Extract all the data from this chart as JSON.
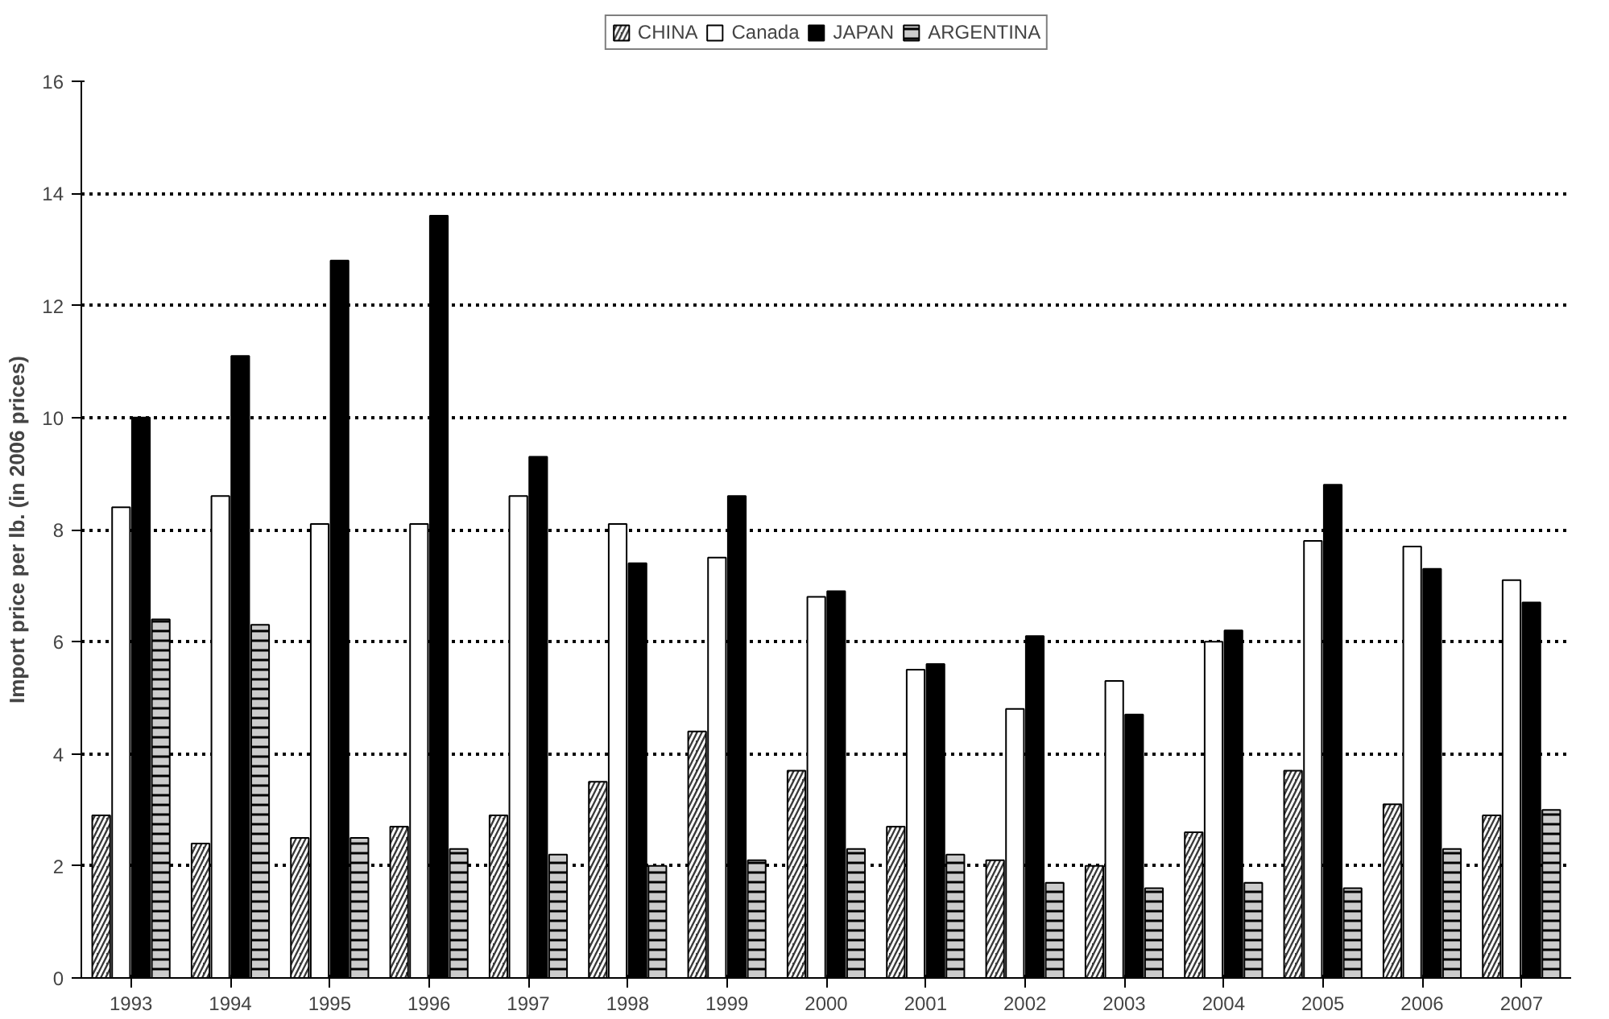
{
  "chart_data": {
    "type": "bar",
    "ylabel": "Import price per lb. (in 2006 prices)",
    "categories": [
      "1993",
      "1994",
      "1995",
      "1996",
      "1997",
      "1998",
      "1999",
      "2000",
      "2001",
      "2002",
      "2003",
      "2004",
      "2005",
      "2006",
      "2007"
    ],
    "series": [
      {
        "name": "CHINA",
        "color": "#3a3a3a",
        "values": [
          2.9,
          2.4,
          2.5,
          2.7,
          2.9,
          3.5,
          4.4,
          3.7,
          2.7,
          2.1,
          2.0,
          2.6,
          3.7,
          3.1,
          2.9
        ]
      },
      {
        "name": "Canada",
        "color": "#ffffff",
        "values": [
          8.4,
          8.6,
          8.1,
          8.1,
          8.6,
          8.1,
          7.5,
          6.8,
          5.5,
          4.8,
          5.3,
          6.0,
          7.8,
          7.7,
          7.1
        ]
      },
      {
        "name": "JAPAN",
        "color": "#000000",
        "values": [
          10.0,
          11.1,
          12.8,
          13.6,
          9.3,
          7.4,
          8.6,
          6.9,
          5.6,
          6.1,
          4.7,
          6.2,
          8.8,
          7.3,
          6.7
        ]
      },
      {
        "name": "ARGENTINA",
        "color": "#cccccc",
        "values": [
          6.4,
          6.3,
          2.5,
          2.3,
          2.2,
          2.0,
          2.1,
          2.3,
          2.2,
          1.7,
          1.6,
          1.7,
          1.6,
          2.3,
          3.0
        ]
      }
    ],
    "ylim": [
      0,
      16
    ],
    "yticks": [
      0,
      2,
      4,
      6,
      8,
      10,
      12,
      14,
      16
    ],
    "grid": "y",
    "legend": "top"
  }
}
